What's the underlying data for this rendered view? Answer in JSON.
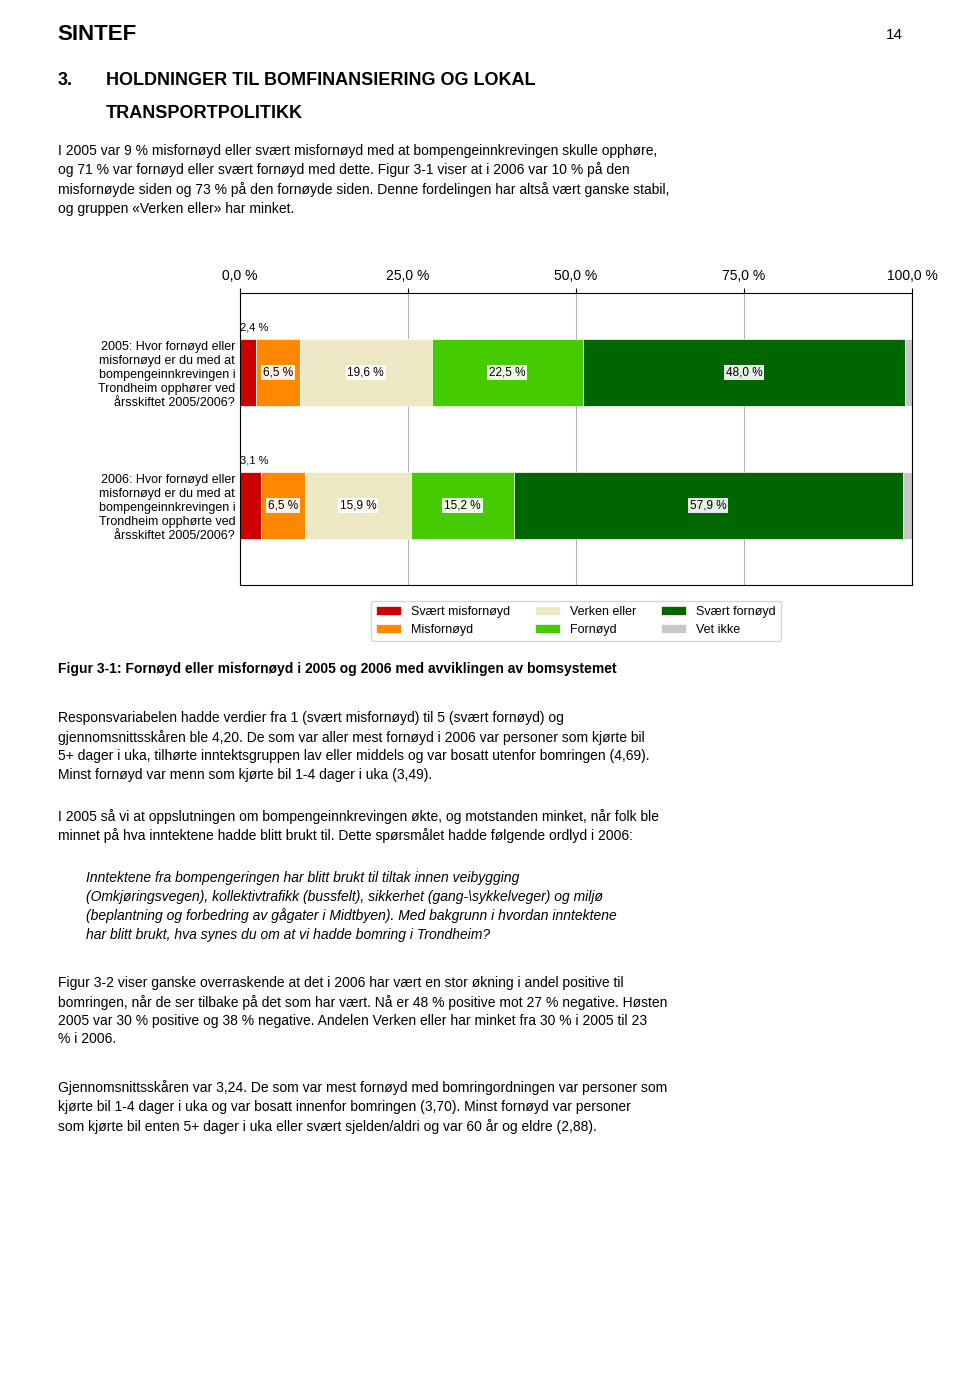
{
  "chart_data": {
    "type": "bar",
    "orientation": "horizontal",
    "stacked": true,
    "title": "Figur 3-1: Fornøyd eller misfornøyd i 2005 og 2006 med avviklingen av bomsystemet",
    "categories": [
      "2005: Hvor fornøyd eller\nmisfornøyd er du med at\nbompengeinnkrevingen i\nTrondheim opphører ved\nårsskiftet 2005/2006?",
      "2006: Hvor fornøyd eller\nmisfornøyd er du med at\nbompengeinnkrevingen i\nTrondheim opphørte ved\nårsskiftet 2005/2006?"
    ],
    "series": [
      {
        "name": "Svært misfornøyd",
        "color": "#cc0000",
        "values": [
          2.4,
          3.1
        ],
        "value_labels": [
          "2,4 %",
          "3,1 %"
        ]
      },
      {
        "name": "Misfornøyd",
        "color": "#ff8800",
        "values": [
          6.5,
          6.5
        ],
        "value_labels": [
          "6,5 %",
          "6,5 %"
        ]
      },
      {
        "name": "Verken eller",
        "color": "#ede8c4",
        "values": [
          19.6,
          15.9
        ],
        "value_labels": [
          "19,6 %",
          "15,9 %"
        ]
      },
      {
        "name": "Fornøyd",
        "color": "#44cc00",
        "values": [
          22.5,
          15.2
        ],
        "value_labels": [
          "22,5 %",
          "15,2 %"
        ]
      },
      {
        "name": "Svært fornøyd",
        "color": "#006600",
        "values": [
          48.0,
          57.9
        ],
        "value_labels": [
          "48,0 %",
          "57,9 %"
        ]
      },
      {
        "name": "Vet ikke",
        "color": "#c8c8c8",
        "values": [
          1.0,
          1.4
        ]
      }
    ],
    "xlim": [
      0,
      100
    ],
    "xticks": [
      {
        "value": 0,
        "label": "0,0 %"
      },
      {
        "value": 25,
        "label": "25,0 %"
      },
      {
        "value": 50,
        "label": "50,0 %"
      },
      {
        "value": 75,
        "label": "75,0 %"
      },
      {
        "value": 100,
        "label": "100,0 %"
      }
    ],
    "grid": true,
    "legend": "upper center",
    "data_labels": true,
    "annotations": [
      "SINTEF",
      "14",
      "3.",
      "HOLDNINGER TIL BOMFINANSIERING OG LOKAL",
      "TRANSPORTPOLITIKK",
      "I 2005 var 9 % misfornøyd eller svært misfornøyd med at bompengeinnkrevingen skulle opphøre,\nog 71 % var fornøyd eller svært fornøyd med dette. Figur 3-1 viser at i 2006 var 10 % på den\nmisfornøyde siden og 73 % på den fornøyde siden. Denne fordelingen har altså vært ganske stabil,\nog gruppen «Verken eller» har minket.",
      "Responsvariabelen hadde verdier fra 1 (svært misfornøyd) til 5 (svært fornøyd) og\ngjennomsnittsskåren ble 4,20. De som var aller mest fornøyd i 2006 var personer som kjørte bil\n5+ dager i uka, tilhørte inntektsgruppen lav eller middels og var bosatt utenfor bomringen (4,69).\nMinst fornøyd var menn som kjørte bil 1-4 dager i uka (3,49).",
      "I 2005 så vi at oppslutningen om bompengeinnkrevingen økte, og motstanden minket, når folk ble\nminnet på hva inntektene hadde blitt brukt til. Dette spørsmålet hadde følgende ordlyd i 2006:",
      "Inntektene fra bompengeringen har blitt brukt til tiltak innen veibygging\n(Omkjøringsvegen), kollektivtrafikk (bussfelt), sikkerhet (gang-\\sykkelveger) og miljø\n(beplantning og forbedring av gågater i Midtbyen). Med bakgrunn i hvordan inntektene\nhar blitt brukt, hva synes du om at vi hadde bomring i Trondheim?",
      "Figur 3-2 viser ganske overraskende at det i 2006 har vært en stor økning i andel positive til\nbomringen, når de ser tilbake på det som har vært. Nå er 48 % positive mot 27 % negative. Høsten\n2005 var 30 % positive og 38 % negative. Andelen Verken eller har minket fra 30 % i 2005 til 23\n% i 2006.",
      "Gjennomsnittsskåren var 3,24. De som var mest fornøyd med bomringordningen var personer som\nkjørte bil 1-4 dager i uka og var bosatt innenfor bomringen (3,70). Minst fornøyd var personer\nsom kjørte bil enten 5+ dager i uka eller svært sjelden/aldri og var 60 år og eldre (2,88)."
    ]
  }
}
